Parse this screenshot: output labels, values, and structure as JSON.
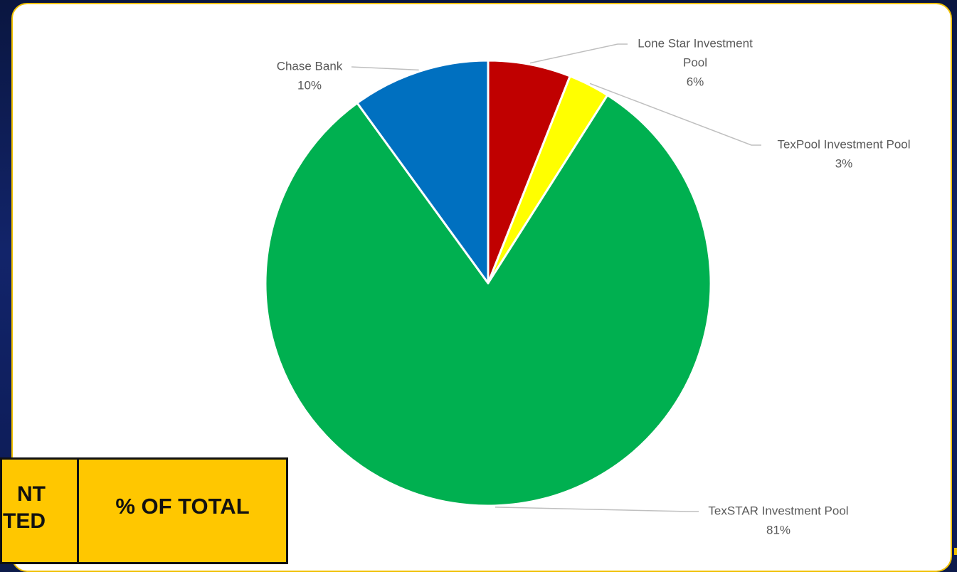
{
  "chart_data": {
    "type": "pie",
    "title": "",
    "start_angle_deg": 0,
    "direction": "clockwise",
    "slices": [
      {
        "label": "Lone Star Investment Pool",
        "label_lines": [
          "Lone Star Investment",
          "Pool"
        ],
        "value": 6,
        "percent_label": "6%",
        "color": "#c00000"
      },
      {
        "label": "TexPool Investment Pool",
        "label_lines": [
          "TexPool Investment Pool"
        ],
        "value": 3,
        "percent_label": "3%",
        "color": "#ffff00"
      },
      {
        "label": "TexSTAR Investment Pool",
        "label_lines": [
          "TexSTAR Investment Pool"
        ],
        "value": 81,
        "percent_label": "81%",
        "color": "#00b050"
      },
      {
        "label": "Chase Bank",
        "label_lines": [
          "Chase Bank"
        ],
        "value": 10,
        "percent_label": "10%",
        "color": "#0070c0"
      }
    ],
    "legend": "none",
    "data_labels": "outside with leader lines"
  },
  "table_fragment": {
    "left_header": "NT\nTED",
    "right_header": "% OF TOTAL",
    "fill_color": "#ffc700"
  }
}
